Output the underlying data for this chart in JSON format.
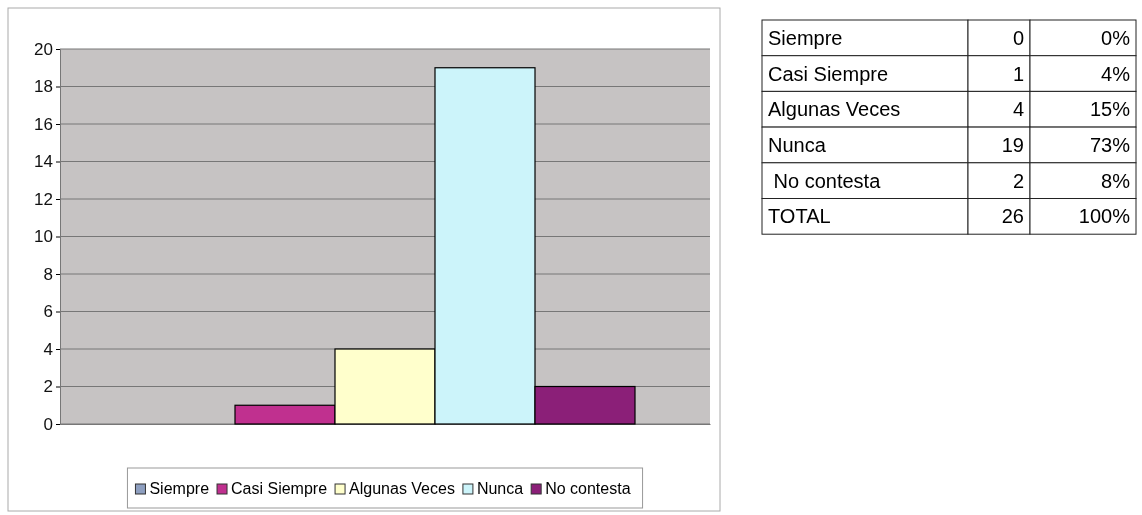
{
  "chart_data": [
    {
      "type": "bar",
      "categories": [
        null
      ],
      "series": [
        {
          "name": "Siempre",
          "color": "#8e9fc0",
          "values": [
            0
          ]
        },
        {
          "name": "Casi Siempre",
          "color": "#c0308f",
          "values": [
            1
          ]
        },
        {
          "name": "Algunas Veces",
          "color": "#ffffcc",
          "values": [
            4
          ]
        },
        {
          "name": "Nunca",
          "color": "#ccf4fa",
          "values": [
            19
          ]
        },
        {
          "name": "No contesta",
          "color": "#8b1f78",
          "values": [
            2
          ]
        }
      ],
      "ylim": [
        0,
        20
      ],
      "yticks": [
        0,
        2,
        4,
        6,
        8,
        10,
        12,
        14,
        16,
        18,
        20
      ],
      "grid": "y",
      "legend": "bottom"
    },
    {
      "type": "other",
      "annotations": [
        "Siempre",
        "0",
        "0%",
        "Casi Siempre",
        "1",
        "4%",
        "Algunas Veces",
        "4",
        "15%",
        "Nunca",
        "19",
        "73%",
        " No contesta",
        "2",
        "8%",
        "TOTAL",
        "26",
        "100%"
      ]
    }
  ]
}
